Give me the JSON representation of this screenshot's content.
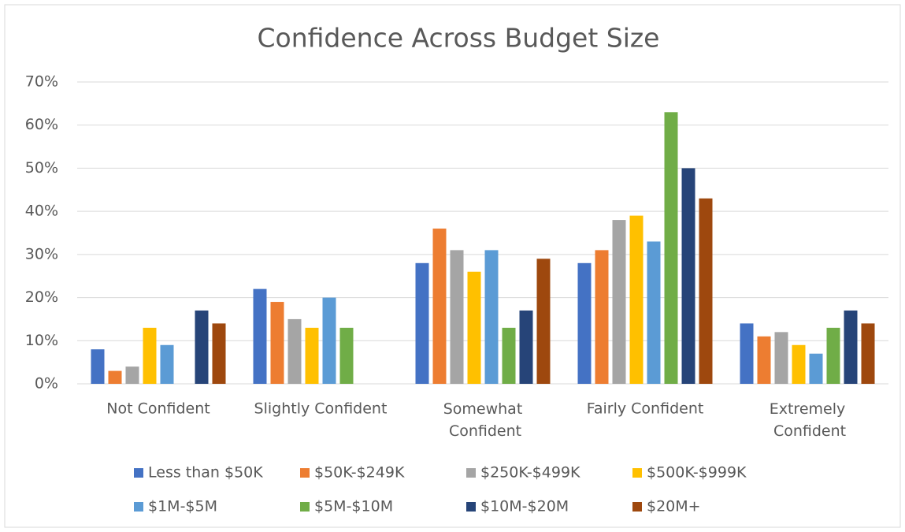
{
  "chart_data": {
    "type": "bar",
    "title": "Confidence Across Budget Size",
    "categories": [
      "Not Confident",
      "Slightly Confident",
      "Somewhat Confident",
      "Fairly Confident",
      "Extremely Confident"
    ],
    "series": [
      {
        "name": "Less than $50K",
        "color": "#4472c4",
        "values": [
          8,
          22,
          28,
          28,
          14
        ]
      },
      {
        "name": "$50K-$249K",
        "color": "#ed7d31",
        "values": [
          3,
          19,
          36,
          31,
          11
        ]
      },
      {
        "name": "$250K-$499K",
        "color": "#a5a5a5",
        "values": [
          4,
          15,
          31,
          38,
          12
        ]
      },
      {
        "name": "$500K-$999K",
        "color": "#ffc000",
        "values": [
          13,
          13,
          26,
          39,
          9
        ]
      },
      {
        "name": "$1M-$5M",
        "color": "#5b9bd5",
        "values": [
          9,
          20,
          31,
          33,
          7
        ]
      },
      {
        "name": "$5M-$10M",
        "color": "#70ad47",
        "values": [
          0,
          13,
          13,
          63,
          13
        ]
      },
      {
        "name": "$10M-$20M",
        "color": "#264478",
        "values": [
          17,
          0,
          17,
          50,
          17
        ]
      },
      {
        "name": "$20M+",
        "color": "#9e480e",
        "values": [
          14,
          0,
          29,
          43,
          14
        ]
      }
    ],
    "ylim": [
      0,
      70
    ],
    "yticks": [
      {
        "value": 0,
        "label": "0%"
      },
      {
        "value": 10,
        "label": "10%"
      },
      {
        "value": 20,
        "label": "20%"
      },
      {
        "value": 30,
        "label": "30%"
      },
      {
        "value": 40,
        "label": "40%"
      },
      {
        "value": 50,
        "label": "50%"
      },
      {
        "value": 60,
        "label": "60%"
      },
      {
        "value": 70,
        "label": "70%"
      }
    ],
    "grid": true,
    "legend": "bottom"
  }
}
